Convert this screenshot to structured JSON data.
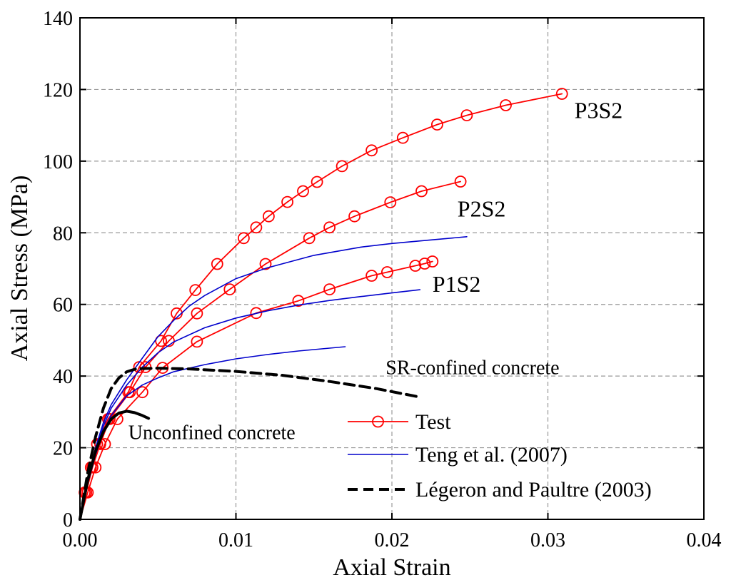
{
  "chart_data": {
    "type": "line",
    "xlabel": "Axial Strain",
    "ylabel": "Axial Stress (MPa)",
    "xlim": [
      0,
      0.04
    ],
    "ylim": [
      0,
      140
    ],
    "x_ticks": [
      0.0,
      0.01,
      0.02,
      0.03,
      0.04
    ],
    "x_tick_labels": [
      "0.00",
      "0.01",
      "0.02",
      "0.03",
      "0.04"
    ],
    "y_ticks": [
      0,
      20,
      40,
      60,
      80,
      100,
      120,
      140
    ],
    "y_tick_labels": [
      "0",
      "20",
      "40",
      "60",
      "80",
      "100",
      "120",
      "140"
    ],
    "grid": true,
    "legend_position": "lower-right",
    "legend": [
      {
        "label": "Test",
        "style": "test"
      },
      {
        "label": "Teng et al. (2007)",
        "style": "teng"
      },
      {
        "label": "Légeron and Paultre (2003)",
        "style": "legeron"
      }
    ],
    "annotations": [
      {
        "text": "P3S2",
        "x": 0.0317,
        "y": 112
      },
      {
        "text": "P2S2",
        "x": 0.0242,
        "y": 84.5
      },
      {
        "text": "P1S2",
        "x": 0.0226,
        "y": 63.5
      },
      {
        "text": "SR-confined concrete",
        "x": 0.0196,
        "y": 40.5
      },
      {
        "text": "Unconfined concrete",
        "x": 0.0031,
        "y": 22.4
      }
    ],
    "colors": {
      "test": "#ff0000",
      "teng": "#0000cc",
      "legeron": "#000000"
    },
    "series": [
      {
        "group": "test",
        "label": "P3S2",
        "points": [
          [
            0.0,
            0
          ],
          [
            0.0003,
            7.5
          ],
          [
            0.0007,
            14.5
          ],
          [
            0.0011,
            21
          ],
          [
            0.0018,
            28
          ],
          [
            0.0031,
            35.5
          ],
          [
            0.0038,
            42.5
          ],
          [
            0.0052,
            49.8
          ],
          [
            0.0062,
            57.5
          ],
          [
            0.0074,
            64
          ],
          [
            0.0088,
            71.3
          ],
          [
            0.0105,
            78.5
          ],
          [
            0.0113,
            81.5
          ],
          [
            0.0121,
            84.6
          ],
          [
            0.0133,
            88.6
          ],
          [
            0.0143,
            91.6
          ],
          [
            0.0152,
            94.2
          ],
          [
            0.0168,
            98.6
          ],
          [
            0.0187,
            103
          ],
          [
            0.0207,
            106.5
          ],
          [
            0.0229,
            110.2
          ],
          [
            0.0248,
            112.8
          ],
          [
            0.0273,
            115.6
          ],
          [
            0.0309,
            118.8
          ]
        ]
      },
      {
        "group": "test",
        "label": "P2S2",
        "points": [
          [
            0.0,
            0
          ],
          [
            0.0004,
            7.5
          ],
          [
            0.0008,
            14.5
          ],
          [
            0.0013,
            21
          ],
          [
            0.0019,
            28
          ],
          [
            0.0032,
            35.5
          ],
          [
            0.0042,
            42.5
          ],
          [
            0.0057,
            49.8
          ],
          [
            0.0075,
            57.5
          ],
          [
            0.0096,
            64.2
          ],
          [
            0.0119,
            71.3
          ],
          [
            0.0147,
            78.5
          ],
          [
            0.016,
            81.5
          ],
          [
            0.0176,
            84.6
          ],
          [
            0.0199,
            88.5
          ],
          [
            0.0219,
            91.6
          ],
          [
            0.0244,
            94.3
          ]
        ]
      },
      {
        "group": "test",
        "label": "P1S2",
        "points": [
          [
            0.0,
            0
          ],
          [
            0.0005,
            7.5
          ],
          [
            0.001,
            14.5
          ],
          [
            0.0016,
            21
          ],
          [
            0.0024,
            28
          ],
          [
            0.004,
            35.5
          ],
          [
            0.0053,
            42.3
          ],
          [
            0.0075,
            49.6
          ],
          [
            0.0113,
            57.6
          ],
          [
            0.014,
            61
          ],
          [
            0.016,
            64.2
          ],
          [
            0.0187,
            68
          ],
          [
            0.0197,
            69
          ],
          [
            0.0215,
            70.8
          ],
          [
            0.0221,
            71.4
          ],
          [
            0.0226,
            72
          ]
        ]
      },
      {
        "group": "teng",
        "label": "P3S2",
        "points": [
          [
            0.0,
            0
          ],
          [
            0.0005,
            11
          ],
          [
            0.001,
            20
          ],
          [
            0.0015,
            27
          ],
          [
            0.002,
            32
          ],
          [
            0.003,
            39
          ],
          [
            0.004,
            45
          ],
          [
            0.005,
            51
          ],
          [
            0.006,
            55.5
          ],
          [
            0.007,
            59.5
          ],
          [
            0.008,
            62.5
          ],
          [
            0.01,
            67.2
          ],
          [
            0.012,
            70.2
          ],
          [
            0.015,
            73.7
          ],
          [
            0.018,
            76
          ],
          [
            0.02,
            77
          ],
          [
            0.022,
            77.8
          ],
          [
            0.0248,
            78.9
          ]
        ]
      },
      {
        "group": "teng",
        "label": "P2S2",
        "points": [
          [
            0.0,
            0
          ],
          [
            0.0005,
            10.5
          ],
          [
            0.001,
            19
          ],
          [
            0.0015,
            26
          ],
          [
            0.002,
            31
          ],
          [
            0.003,
            37.5
          ],
          [
            0.004,
            42.5
          ],
          [
            0.005,
            46.5
          ],
          [
            0.006,
            49.5
          ],
          [
            0.008,
            53.5
          ],
          [
            0.01,
            56.2
          ],
          [
            0.012,
            58.2
          ],
          [
            0.014,
            59.8
          ],
          [
            0.016,
            61.1
          ],
          [
            0.018,
            62.2
          ],
          [
            0.02,
            63.2
          ],
          [
            0.0218,
            64.1
          ]
        ]
      },
      {
        "group": "teng",
        "label": "P1S2",
        "points": [
          [
            0.0,
            0
          ],
          [
            0.0005,
            10
          ],
          [
            0.001,
            18
          ],
          [
            0.0015,
            24.5
          ],
          [
            0.002,
            29
          ],
          [
            0.003,
            34.5
          ],
          [
            0.004,
            37.5
          ],
          [
            0.005,
            39.5
          ],
          [
            0.006,
            41.2
          ],
          [
            0.008,
            43.2
          ],
          [
            0.01,
            44.8
          ],
          [
            0.012,
            46
          ],
          [
            0.014,
            47
          ],
          [
            0.016,
            47.8
          ],
          [
            0.017,
            48.2
          ]
        ]
      },
      {
        "group": "legeron",
        "label": "SR-confined concrete",
        "points": [
          [
            0.0,
            0
          ],
          [
            0.0005,
            13
          ],
          [
            0.001,
            23
          ],
          [
            0.0015,
            31
          ],
          [
            0.002,
            36.5
          ],
          [
            0.0025,
            39.5
          ],
          [
            0.003,
            41.2
          ],
          [
            0.0035,
            41.9
          ],
          [
            0.004,
            42.1
          ],
          [
            0.005,
            42.2
          ],
          [
            0.007,
            42
          ],
          [
            0.01,
            41.3
          ],
          [
            0.013,
            40.2
          ],
          [
            0.016,
            38.5
          ],
          [
            0.019,
            36.5
          ],
          [
            0.0216,
            34.3
          ]
        ]
      },
      {
        "group": "unconfined",
        "label": "Unconfined concrete",
        "points": [
          [
            0.0,
            0
          ],
          [
            0.0005,
            11
          ],
          [
            0.001,
            19
          ],
          [
            0.0015,
            24.5
          ],
          [
            0.002,
            28
          ],
          [
            0.0025,
            29.7
          ],
          [
            0.003,
            30.2
          ],
          [
            0.0035,
            29.8
          ],
          [
            0.004,
            29
          ],
          [
            0.0044,
            28.2
          ]
        ]
      }
    ]
  }
}
